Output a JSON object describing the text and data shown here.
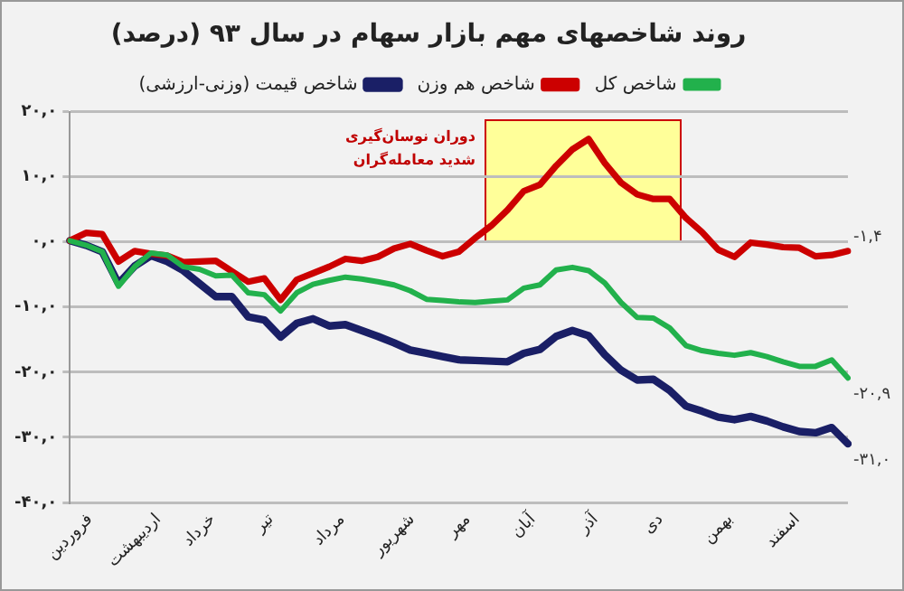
{
  "chart_data": {
    "type": "line",
    "title": "روند شاخصهای مهم بازار سهام در سال ۹۳ (درصد)",
    "categories": [
      "فروردین",
      null,
      null,
      null,
      "اردیبهشت",
      null,
      null,
      null,
      "خرداد",
      null,
      null,
      null,
      "تیر",
      null,
      null,
      null,
      "مرداد",
      null,
      null,
      null,
      "شهریور",
      null,
      null,
      null,
      "مهر",
      null,
      null,
      null,
      "آبان",
      null,
      null,
      null,
      "آذر",
      null,
      null,
      null,
      "دی",
      null,
      null,
      null,
      "بهمن",
      null,
      null,
      null,
      "اسفند",
      null,
      null,
      null,
      null
    ],
    "ylim": [
      -40,
      20
    ],
    "yticks": [
      {
        "value": 20,
        "label": "۲۰,۰"
      },
      {
        "value": 10,
        "label": "۱۰,۰"
      },
      {
        "value": 0,
        "label": "۰,۰"
      },
      {
        "value": -10,
        "label": "-۱۰,۰"
      },
      {
        "value": -20,
        "label": "-۲۰,۰"
      },
      {
        "value": -30,
        "label": "-۳۰,۰"
      },
      {
        "value": -40,
        "label": "-۴۰,۰"
      }
    ],
    "grid": "y",
    "legend": "top",
    "line_style": "solid",
    "marker": "none",
    "series": [
      {
        "name": "شاخص کل",
        "color": "#22b14c",
        "values": [
          0.2,
          -0.5,
          -1.5,
          -6.8,
          -3.8,
          -1.7,
          -2.0,
          -3.8,
          -4.2,
          -5.2,
          -5.1,
          -7.8,
          -8.1,
          -10.6,
          -7.8,
          -6.5,
          -5.9,
          -5.4,
          -5.7,
          -6.1,
          -6.6,
          -7.5,
          -8.8,
          -9.0,
          -9.2,
          -9.3,
          -9.1,
          -8.9,
          -7.1,
          -6.6,
          -4.3,
          -3.9,
          -4.4,
          -6.3,
          -9.3,
          -11.6,
          -11.7,
          -13.2,
          -15.9,
          -16.7,
          -17.1,
          -17.4,
          -17.0,
          -17.6,
          -18.4,
          -19.1,
          -19.1,
          -18.1,
          -20.9
        ]
      },
      {
        "name": "شاخص هم وزن",
        "color": "#cc0000",
        "values": [
          0.2,
          1.4,
          1.2,
          -3.0,
          -1.4,
          -1.8,
          -2.1,
          -3.1,
          -3.0,
          -2.9,
          -4.5,
          -6.1,
          -5.6,
          -8.9,
          -5.8,
          -4.8,
          -3.8,
          -2.6,
          -2.9,
          -2.3,
          -1.0,
          -0.3,
          -1.3,
          -2.2,
          -1.5,
          0.6,
          2.5,
          4.9,
          7.8,
          8.8,
          11.7,
          14.2,
          15.8,
          12.1,
          9.1,
          7.3,
          6.6,
          6.6,
          3.7,
          1.5,
          -1.2,
          -2.3,
          -0.1,
          -0.4,
          -0.8,
          -0.9,
          -2.2,
          -2.0,
          -1.4
        ]
      },
      {
        "name": "شاخص قیمت (وزنی-ارزشی)",
        "color": "#1a1f66",
        "values": [
          0.2,
          -0.5,
          -1.5,
          -6.4,
          -3.7,
          -2.1,
          -3.0,
          -4.4,
          -6.4,
          -8.4,
          -8.4,
          -11.5,
          -12.0,
          -14.6,
          -12.5,
          -11.8,
          -12.9,
          -12.7,
          -13.6,
          -14.5,
          -15.5,
          -16.6,
          -17.1,
          -17.6,
          -18.1,
          -18.2,
          -18.3,
          -18.4,
          -17.1,
          -16.5,
          -14.5,
          -13.6,
          -14.4,
          -17.3,
          -19.7,
          -21.2,
          -21.1,
          -22.8,
          -25.2,
          -26.0,
          -26.9,
          -27.3,
          -26.8,
          -27.5,
          -28.4,
          -29.1,
          -29.3,
          -28.5,
          -31.0
        ]
      }
    ],
    "annotations": [
      "دوران نوسان‌گیری شدید معامله‌گران",
      "-۲۰,۹",
      "-۱,۴",
      "-۳۱,۰"
    ]
  }
}
